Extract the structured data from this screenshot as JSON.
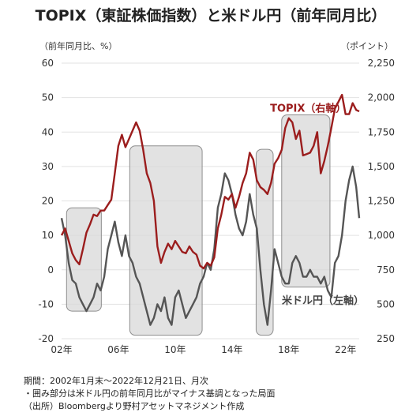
{
  "chart_data": {
    "type": "line",
    "title": "TOPIX（東証株価指数）と米ドル円（前年同月比）",
    "left_axis_label": "（前年同月比、%）",
    "right_axis_label": "（ポイント）",
    "left_ylim": [
      -20,
      60
    ],
    "right_ylim": [
      250,
      2250
    ],
    "left_ticks": [
      "60",
      "50",
      "40",
      "30",
      "20",
      "10",
      "0",
      "-10",
      "-20"
    ],
    "right_ticks": [
      "2,250",
      "2,000",
      "1,750",
      "1,500",
      "1,250",
      "1,000",
      "750",
      "500",
      "250"
    ],
    "x_ticks": [
      "02年",
      "06年",
      "10年",
      "14年",
      "18年",
      "22年"
    ],
    "x_tick_years": [
      2002,
      2006,
      2010,
      2014,
      2018,
      2022
    ],
    "xlim": [
      2002.0,
      2022.96
    ],
    "legend": {
      "placement": "inline"
    },
    "series": [
      {
        "name": "TOPIX（右軸）",
        "axis": "right",
        "color": "#9b1d1d",
        "x": [
          2002.0,
          2002.25,
          2002.5,
          2002.75,
          2003.0,
          2003.25,
          2003.5,
          2003.75,
          2004.0,
          2004.25,
          2004.5,
          2004.75,
          2005.0,
          2005.25,
          2005.5,
          2005.75,
          2006.0,
          2006.25,
          2006.5,
          2006.75,
          2007.0,
          2007.25,
          2007.5,
          2007.75,
          2008.0,
          2008.25,
          2008.5,
          2008.75,
          2009.0,
          2009.25,
          2009.5,
          2009.75,
          2010.0,
          2010.25,
          2010.5,
          2010.75,
          2011.0,
          2011.25,
          2011.5,
          2011.75,
          2012.0,
          2012.25,
          2012.5,
          2012.75,
          2013.0,
          2013.25,
          2013.5,
          2013.75,
          2014.0,
          2014.25,
          2014.5,
          2014.75,
          2015.0,
          2015.25,
          2015.5,
          2015.75,
          2016.0,
          2016.25,
          2016.5,
          2016.75,
          2017.0,
          2017.25,
          2017.5,
          2017.75,
          2018.0,
          2018.25,
          2018.5,
          2018.75,
          2019.0,
          2019.25,
          2019.5,
          2019.75,
          2020.0,
          2020.25,
          2020.5,
          2020.75,
          2021.0,
          2021.25,
          2021.5,
          2021.75,
          2022.0,
          2022.25,
          2022.5,
          2022.75,
          2022.96
        ],
        "values": [
          1000,
          1050,
          960,
          870,
          820,
          790,
          900,
          1020,
          1080,
          1150,
          1140,
          1180,
          1180,
          1220,
          1260,
          1450,
          1650,
          1730,
          1640,
          1700,
          1760,
          1820,
          1760,
          1620,
          1450,
          1380,
          1250,
          920,
          800,
          880,
          940,
          900,
          960,
          920,
          880,
          870,
          920,
          880,
          860,
          780,
          760,
          800,
          780,
          840,
          1050,
          1150,
          1280,
          1260,
          1300,
          1200,
          1280,
          1380,
          1450,
          1600,
          1550,
          1400,
          1350,
          1330,
          1300,
          1380,
          1520,
          1560,
          1620,
          1780,
          1850,
          1820,
          1700,
          1760,
          1580,
          1590,
          1600,
          1650,
          1750,
          1450,
          1540,
          1650,
          1780,
          1920,
          1970,
          2020,
          1880,
          1880,
          1960,
          1910,
          1900
        ],
        "label_pos": [
          2008.9,
          1920
        ]
      },
      {
        "name": "米ドル円（左軸）",
        "axis": "left",
        "color": "#555555",
        "x": [
          2002.0,
          2002.25,
          2002.5,
          2002.75,
          2003.0,
          2003.25,
          2003.5,
          2003.75,
          2004.0,
          2004.25,
          2004.5,
          2004.75,
          2005.0,
          2005.25,
          2005.5,
          2005.75,
          2006.0,
          2006.25,
          2006.5,
          2006.75,
          2007.0,
          2007.25,
          2007.5,
          2007.75,
          2008.0,
          2008.25,
          2008.5,
          2008.75,
          2009.0,
          2009.25,
          2009.5,
          2009.75,
          2010.0,
          2010.25,
          2010.5,
          2010.75,
          2011.0,
          2011.25,
          2011.5,
          2011.75,
          2012.0,
          2012.25,
          2012.5,
          2012.75,
          2013.0,
          2013.25,
          2013.5,
          2013.75,
          2014.0,
          2014.25,
          2014.5,
          2014.75,
          2015.0,
          2015.25,
          2015.5,
          2015.75,
          2016.0,
          2016.25,
          2016.5,
          2016.75,
          2017.0,
          2017.25,
          2017.5,
          2017.75,
          2018.0,
          2018.25,
          2018.5,
          2018.75,
          2019.0,
          2019.25,
          2019.5,
          2019.75,
          2020.0,
          2020.25,
          2020.5,
          2020.75,
          2021.0,
          2021.25,
          2021.5,
          2021.75,
          2022.0,
          2022.25,
          2022.5,
          2022.75,
          2022.96
        ],
        "values": [
          15,
          10,
          2,
          -3,
          -4,
          -8,
          -10,
          -12,
          -10,
          -8,
          -4,
          -6,
          -2,
          6,
          10,
          14,
          8,
          4,
          10,
          4,
          2,
          -2,
          -4,
          -8,
          -12,
          -16,
          -14,
          -10,
          -12,
          -8,
          -14,
          -16,
          -8,
          -6,
          -10,
          -14,
          -12,
          -10,
          -8,
          -4,
          -2,
          2,
          0,
          6,
          18,
          22,
          28,
          26,
          22,
          16,
          12,
          10,
          14,
          22,
          16,
          12,
          0,
          -10,
          -16,
          -6,
          6,
          2,
          -2,
          -4,
          -4,
          2,
          4,
          2,
          -2,
          -2,
          0,
          -2,
          -2,
          -4,
          -2,
          -6,
          -8,
          2,
          4,
          10,
          20,
          26,
          30,
          24,
          15
        ],
        "label_pos": [
          2017.4,
          -8.8
        ]
      }
    ],
    "shaded_regions": [
      {
        "x0": 2002.35,
        "x1": 2004.8,
        "y0": -12,
        "y1": 18
      },
      {
        "x0": 2006.8,
        "x1": 2011.9,
        "y0": -19,
        "y1": 36
      },
      {
        "x0": 2015.7,
        "x1": 2016.9,
        "y0": -19,
        "y1": 35
      },
      {
        "x0": 2017.5,
        "x1": 2020.9,
        "y0": -5,
        "y1": 45
      }
    ],
    "shade_color": "#d8d8d8",
    "notes": [
      "期間：2002年1月末～2022年12月21日、月次",
      "・囲み部分は米ドル円の前年同月比がマイナス基調となった局面",
      "（出所）Bloombergより野村アセットマネジメント作成"
    ]
  }
}
